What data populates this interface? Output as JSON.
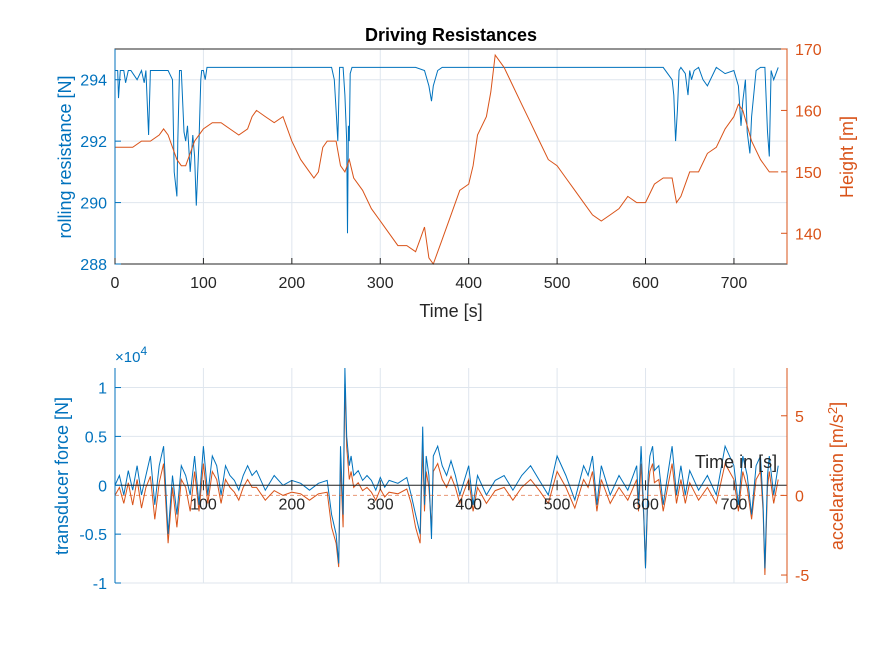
{
  "figure": {
    "background": "#ffffff",
    "grid_color": "#dfe6ee",
    "axis_color": "#262626"
  },
  "chart_data": [
    {
      "type": "line",
      "title": "Driving Resistances",
      "xlabel": "Time [s]",
      "xlim": [
        0,
        760
      ],
      "xticks": [
        0,
        100,
        200,
        300,
        400,
        500,
        600,
        700
      ],
      "grid": true,
      "left_axis": {
        "label": "rolling resistance [N]",
        "color": "#0072BD",
        "ylim": [
          288,
          295
        ],
        "ticks": [
          288,
          290,
          292,
          294
        ]
      },
      "right_axis": {
        "label": "Height [m]",
        "color": "#D95319",
        "ylim": [
          135,
          170
        ],
        "ticks": [
          140,
          150,
          160,
          170
        ]
      },
      "series": [
        {
          "axis": "left",
          "color": "#0072BD",
          "x": [
            0,
            3,
            4,
            6,
            10,
            12,
            15,
            18,
            25,
            30,
            33,
            35,
            38,
            40,
            45,
            50,
            55,
            60,
            65,
            67,
            70,
            71,
            73,
            75,
            78,
            80,
            82,
            85,
            88,
            90,
            92,
            95,
            97,
            98,
            100,
            102,
            104,
            106,
            110,
            120,
            130,
            140,
            150,
            160,
            170,
            180,
            190,
            200,
            210,
            220,
            230,
            240,
            245,
            248,
            250,
            252,
            254,
            256,
            258,
            260,
            262,
            263,
            264,
            265,
            266,
            267,
            268,
            270,
            275,
            280,
            290,
            300,
            320,
            340,
            350,
            355,
            358,
            360,
            365,
            370,
            380,
            390,
            400,
            410,
            420,
            430,
            440,
            450,
            460,
            470,
            480,
            490,
            500,
            510,
            520,
            530,
            540,
            550,
            560,
            570,
            580,
            590,
            600,
            610,
            620,
            630,
            632,
            634,
            636,
            638,
            640,
            645,
            648,
            650,
            652,
            655,
            660,
            665,
            670,
            680,
            690,
            700,
            705,
            708,
            710,
            713,
            715,
            718,
            720,
            725,
            730,
            735,
            738,
            740,
            742,
            745,
            750
          ],
          "y": [
            294.3,
            294.3,
            293.4,
            294.3,
            294.3,
            293.9,
            294.3,
            294.3,
            294.0,
            294.3,
            293.9,
            294.3,
            292.2,
            294.3,
            294.3,
            294.3,
            294.3,
            294.3,
            294.0,
            291.0,
            290.2,
            292.0,
            294.3,
            294.3,
            292.3,
            292.0,
            292.5,
            291.0,
            292.2,
            291.5,
            289.9,
            292.0,
            294.0,
            294.3,
            294.3,
            294.0,
            294.4,
            294.4,
            294.4,
            294.4,
            294.4,
            294.4,
            294.4,
            294.4,
            294.4,
            294.4,
            294.4,
            294.4,
            294.4,
            294.4,
            294.4,
            294.4,
            294.4,
            294.0,
            293.0,
            292.0,
            294.4,
            294.4,
            294.4,
            293.5,
            292.0,
            289.0,
            292.5,
            292.0,
            294.2,
            294.3,
            294.4,
            294.4,
            294.4,
            294.4,
            294.4,
            294.4,
            294.4,
            294.4,
            294.3,
            293.8,
            293.3,
            293.8,
            294.3,
            294.4,
            294.4,
            294.4,
            294.4,
            294.4,
            294.4,
            294.4,
            294.4,
            294.4,
            294.4,
            294.4,
            294.4,
            294.4,
            294.4,
            294.4,
            294.4,
            294.4,
            294.4,
            294.4,
            294.4,
            294.4,
            294.4,
            294.4,
            294.4,
            294.4,
            294.4,
            294.0,
            293.5,
            292.0,
            293.0,
            294.3,
            294.4,
            294.2,
            293.5,
            294.3,
            294.0,
            294.3,
            294.4,
            294.0,
            293.8,
            294.4,
            294.2,
            294.3,
            293.8,
            292.5,
            293.3,
            294.0,
            292.3,
            291.6,
            292.8,
            294.3,
            294.4,
            294.4,
            292.3,
            291.5,
            294.3,
            294.0,
            294.4
          ]
        },
        {
          "axis": "right",
          "color": "#D95319",
          "x": [
            0,
            10,
            20,
            30,
            40,
            50,
            55,
            60,
            70,
            75,
            80,
            90,
            100,
            110,
            120,
            130,
            140,
            150,
            155,
            160,
            170,
            180,
            190,
            200,
            210,
            220,
            225,
            230,
            235,
            240,
            250,
            255,
            260,
            265,
            270,
            280,
            290,
            300,
            310,
            320,
            330,
            340,
            345,
            350,
            355,
            360,
            370,
            380,
            390,
            400,
            405,
            410,
            420,
            425,
            430,
            440,
            450,
            460,
            470,
            480,
            490,
            500,
            510,
            520,
            530,
            540,
            550,
            560,
            570,
            580,
            590,
            600,
            610,
            620,
            630,
            635,
            640,
            650,
            660,
            670,
            680,
            690,
            700,
            705,
            710,
            720,
            730,
            740,
            750
          ],
          "y": [
            154,
            154,
            154,
            155,
            155,
            156,
            157,
            156,
            152,
            151,
            151,
            155,
            157,
            158,
            158,
            157,
            156,
            157,
            159,
            160,
            159,
            158,
            159,
            155,
            152,
            150,
            149,
            150,
            154,
            155,
            155,
            151,
            150,
            152,
            149,
            147,
            144,
            142,
            140,
            138,
            138,
            137,
            139,
            141,
            136,
            135,
            139,
            143,
            147,
            148,
            151,
            156,
            159,
            163,
            169,
            167,
            164,
            161,
            158,
            155,
            152,
            151,
            149,
            147,
            145,
            143,
            142,
            143,
            144,
            146,
            145,
            145,
            148,
            149,
            149,
            145,
            146,
            150,
            150,
            153,
            154,
            157,
            159,
            161,
            160,
            155,
            152,
            150,
            150
          ]
        }
      ]
    },
    {
      "type": "line",
      "exponent_label": "×10",
      "exponent_power": "4",
      "xlabel": "Time in [s]",
      "xlim": [
        0,
        760
      ],
      "xticks": [
        100,
        200,
        300,
        400,
        500,
        600,
        700
      ],
      "grid": true,
      "left_axis": {
        "label": "transducer force [N]",
        "color": "#0072BD",
        "ylim": [
          -1,
          1.2
        ],
        "ticks": [
          -1,
          -0.5,
          0,
          0.5,
          1
        ],
        "tick_labels": [
          "-1",
          "-0.5",
          "0",
          "0.5",
          "1"
        ]
      },
      "right_axis": {
        "label": "accelaration [m/s²]",
        "label_main": "accelaration [m/s",
        "label_sup": "2",
        "label_end": "]",
        "color": "#D95319",
        "ylim": [
          -5.5,
          8
        ],
        "ticks": [
          -5,
          0,
          5
        ],
        "tick_labels": [
          "-5",
          "0",
          "5"
        ]
      },
      "series": [
        {
          "axis": "left",
          "color": "#0072BD",
          "x": [
            0,
            5,
            10,
            15,
            20,
            25,
            30,
            35,
            40,
            45,
            50,
            55,
            60,
            65,
            70,
            75,
            80,
            85,
            90,
            95,
            100,
            105,
            110,
            115,
            120,
            125,
            130,
            135,
            140,
            145,
            150,
            155,
            160,
            170,
            180,
            190,
            200,
            210,
            220,
            230,
            240,
            245,
            250,
            253,
            255,
            258,
            260,
            262,
            265,
            267,
            270,
            275,
            280,
            285,
            290,
            295,
            300,
            305,
            310,
            320,
            330,
            335,
            340,
            345,
            348,
            350,
            352,
            355,
            358,
            360,
            365,
            370,
            375,
            380,
            385,
            390,
            395,
            400,
            405,
            410,
            420,
            430,
            440,
            450,
            460,
            470,
            480,
            490,
            500,
            510,
            520,
            530,
            535,
            540,
            545,
            550,
            560,
            570,
            580,
            590,
            592,
            595,
            598,
            600,
            603,
            605,
            608,
            610,
            615,
            620,
            625,
            630,
            635,
            640,
            645,
            650,
            660,
            670,
            680,
            690,
            700,
            705,
            710,
            715,
            720,
            725,
            730,
            733,
            735,
            738,
            740,
            745,
            750
          ],
          "y": [
            0,
            0.1,
            -0.1,
            0.15,
            -0.05,
            0.2,
            -0.1,
            0.1,
            0.3,
            -0.2,
            0.2,
            0.4,
            -0.5,
            0.1,
            -0.3,
            0.2,
            0.1,
            -0.1,
            0.3,
            -0.2,
            0.4,
            -0.1,
            0.3,
            0.2,
            -0.1,
            0.2,
            0.1,
            0.05,
            -0.05,
            0.1,
            0.2,
            0.1,
            0.15,
            -0.05,
            0.1,
            0,
            0.05,
            0.02,
            -0.05,
            0.02,
            0.05,
            -0.3,
            -0.5,
            -0.8,
            0.4,
            -0.3,
            1.2,
            0.5,
            0.2,
            0.3,
            0.1,
            0.15,
            0.05,
            0.1,
            0.05,
            -0.05,
            0.08,
            -0.02,
            0.05,
            0.02,
            0.08,
            -0.1,
            -0.3,
            -0.5,
            0.6,
            -0.2,
            0.3,
            0.1,
            -0.55,
            0.3,
            0.4,
            0.2,
            0.1,
            0.25,
            0.1,
            -0.1,
            0.05,
            0.2,
            -0.2,
            0.1,
            -0.1,
            0.05,
            0.1,
            -0.05,
            0.1,
            0.2,
            0.05,
            -0.1,
            0.3,
            0.1,
            -0.15,
            0.2,
            0.1,
            0.3,
            -0.2,
            0.2,
            -0.1,
            0.1,
            -0.05,
            0.2,
            -0.2,
            0.4,
            -0.3,
            -0.85,
            0.1,
            0.3,
            0.4,
            0.15,
            0.2,
            -0.2,
            0.1,
            0.4,
            -0.1,
            0.2,
            -0.1,
            0.15,
            -0.05,
            0.1,
            -0.1,
            0.4,
            0.2,
            -0.2,
            0.3,
            0.1,
            -0.3,
            0.2,
            0.3,
            -0.2,
            -0.85,
            0.1,
            0.3,
            -0.1,
            0.2
          ]
        },
        {
          "axis": "right",
          "color": "#D95319",
          "x": [
            0,
            5,
            10,
            15,
            20,
            25,
            30,
            35,
            40,
            45,
            50,
            55,
            60,
            65,
            70,
            75,
            80,
            85,
            90,
            95,
            100,
            105,
            110,
            115,
            120,
            125,
            130,
            135,
            140,
            145,
            150,
            155,
            160,
            170,
            180,
            190,
            200,
            210,
            220,
            230,
            240,
            245,
            250,
            253,
            255,
            258,
            260,
            262,
            265,
            267,
            270,
            275,
            280,
            285,
            290,
            295,
            300,
            305,
            310,
            320,
            330,
            335,
            340,
            345,
            348,
            350,
            352,
            355,
            358,
            360,
            365,
            370,
            375,
            380,
            385,
            390,
            395,
            400,
            405,
            410,
            420,
            430,
            440,
            450,
            460,
            470,
            480,
            490,
            500,
            510,
            520,
            530,
            535,
            540,
            545,
            550,
            560,
            570,
            580,
            590,
            592,
            595,
            598,
            600,
            603,
            605,
            608,
            610,
            615,
            620,
            625,
            630,
            635,
            640,
            645,
            650,
            660,
            670,
            680,
            690,
            700,
            705,
            710,
            715,
            720,
            725,
            730,
            733,
            735,
            738,
            740,
            745,
            750
          ],
          "y": [
            0,
            0.5,
            -0.5,
            0.8,
            -0.6,
            1,
            -0.8,
            0.5,
            1.2,
            -1.5,
            0.8,
            2,
            -3,
            0.5,
            -2,
            1,
            0.5,
            -1,
            1.5,
            -1,
            2,
            -0.5,
            1.5,
            1,
            -0.5,
            1,
            0.5,
            0.2,
            -0.3,
            0.5,
            1,
            0.5,
            0.5,
            -0.3,
            0.3,
            0,
            0.2,
            0.1,
            -0.3,
            0.1,
            0.2,
            -2,
            -3,
            -4.5,
            2,
            -2,
            7,
            3,
            1,
            1.5,
            0.5,
            0.8,
            0.3,
            0.5,
            0.2,
            -0.3,
            0.4,
            -0.1,
            0.2,
            0.1,
            0.4,
            -0.5,
            -2,
            -3,
            3,
            -1,
            1.5,
            0.5,
            -2,
            1.5,
            2,
            1,
            0.5,
            1.2,
            0.5,
            -0.5,
            0.3,
            1,
            -1,
            0.5,
            -0.5,
            0.3,
            0.5,
            -0.3,
            0.5,
            1,
            0.3,
            -0.5,
            1.5,
            0.5,
            -0.8,
            1,
            0.5,
            1.5,
            -1,
            1,
            -0.5,
            0.5,
            -0.3,
            1,
            -1,
            2,
            -1.5,
            -4.5,
            0.5,
            1.5,
            2,
            0.8,
            1,
            -1,
            0.5,
            2,
            -0.5,
            1,
            -0.5,
            0.8,
            -0.3,
            0.5,
            -0.5,
            2,
            1,
            -1,
            1.5,
            0.5,
            -1.5,
            1,
            1.5,
            -1,
            -5,
            0.5,
            1.5,
            -0.5,
            1
          ]
        }
      ]
    }
  ]
}
